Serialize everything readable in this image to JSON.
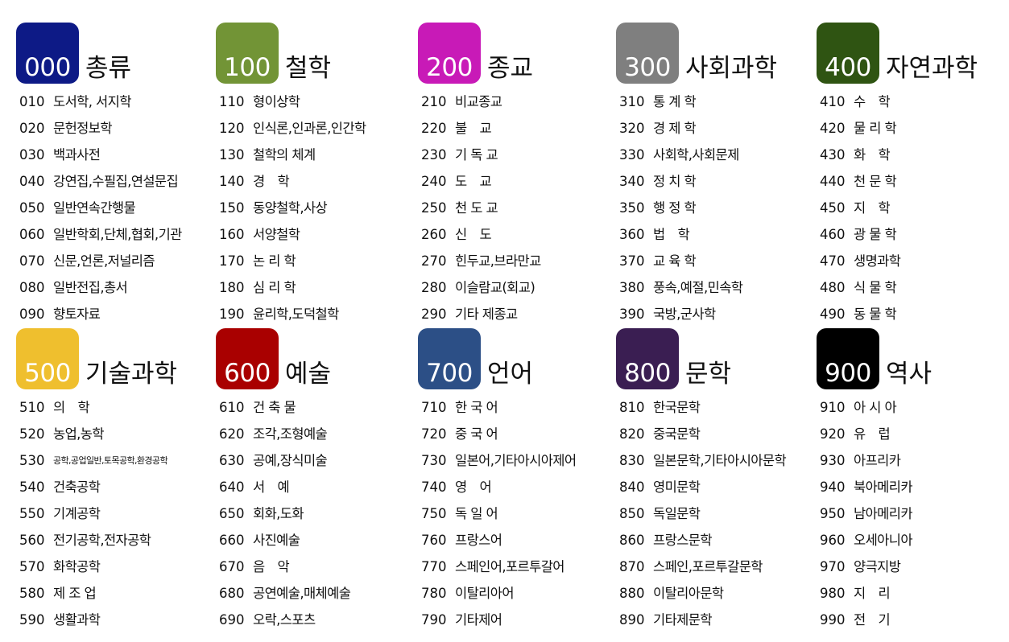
{
  "classes": [
    {
      "code": "000",
      "title": "총류",
      "color": "#0d1a86",
      "items": [
        {
          "num": "010",
          "name": "도서학, 서지학"
        },
        {
          "num": "020",
          "name": "문헌정보학"
        },
        {
          "num": "030",
          "name": "백과사전"
        },
        {
          "num": "040",
          "name": "강연집,수필집,연설문집"
        },
        {
          "num": "050",
          "name": "일반연속간행물"
        },
        {
          "num": "060",
          "name": "일반학회,단체,협회,기관"
        },
        {
          "num": "070",
          "name": "신문,언론,저널리즘"
        },
        {
          "num": "080",
          "name": "일반전집,총서"
        },
        {
          "num": "090",
          "name": "향토자료"
        }
      ]
    },
    {
      "code": "100",
      "title": "철학",
      "color": "#729436",
      "items": [
        {
          "num": "110",
          "name": "형이상학"
        },
        {
          "num": "120",
          "name": "인식론,인과론,인간학"
        },
        {
          "num": "130",
          "name": "철학의 체계"
        },
        {
          "num": "140",
          "name": "경　학"
        },
        {
          "num": "150",
          "name": "동양철학,사상"
        },
        {
          "num": "160",
          "name": "서양철학"
        },
        {
          "num": "170",
          "name": "논 리 학"
        },
        {
          "num": "180",
          "name": "심 리 학"
        },
        {
          "num": "190",
          "name": "윤리학,도덕철학"
        }
      ]
    },
    {
      "code": "200",
      "title": "종교",
      "color": "#c81ab7",
      "items": [
        {
          "num": "210",
          "name": "비교종교"
        },
        {
          "num": "220",
          "name": "불　교"
        },
        {
          "num": "230",
          "name": "기 독 교"
        },
        {
          "num": "240",
          "name": "도　교"
        },
        {
          "num": "250",
          "name": "천 도 교"
        },
        {
          "num": "260",
          "name": "신　도"
        },
        {
          "num": "270",
          "name": "힌두교,브라만교"
        },
        {
          "num": "280",
          "name": "이슬람교(회교)"
        },
        {
          "num": "290",
          "name": "기타 제종교"
        }
      ]
    },
    {
      "code": "300",
      "title": "사회과학",
      "color": "#7f7f7f",
      "items": [
        {
          "num": "310",
          "name": "통 계 학"
        },
        {
          "num": "320",
          "name": "경 제 학"
        },
        {
          "num": "330",
          "name": "사회학,사회문제"
        },
        {
          "num": "340",
          "name": "정 치 학"
        },
        {
          "num": "350",
          "name": "행 정 학"
        },
        {
          "num": "360",
          "name": "법　학"
        },
        {
          "num": "370",
          "name": "교 육 학"
        },
        {
          "num": "380",
          "name": "풍속,예절,민속학"
        },
        {
          "num": "390",
          "name": "국방,군사학"
        }
      ]
    },
    {
      "code": "400",
      "title": "자연과학",
      "color": "#2f5412",
      "items": [
        {
          "num": "410",
          "name": "수　학"
        },
        {
          "num": "420",
          "name": "물 리 학"
        },
        {
          "num": "430",
          "name": "화　학"
        },
        {
          "num": "440",
          "name": "천 문 학"
        },
        {
          "num": "450",
          "name": "지　학"
        },
        {
          "num": "460",
          "name": "광 물 학"
        },
        {
          "num": "470",
          "name": "생명과학"
        },
        {
          "num": "480",
          "name": "식 물 학"
        },
        {
          "num": "490",
          "name": "동 물 학"
        }
      ]
    },
    {
      "code": "500",
      "title": "기술과학",
      "color": "#efbf2e",
      "items": [
        {
          "num": "510",
          "name": "의　학"
        },
        {
          "num": "520",
          "name": "농업,농학"
        },
        {
          "num": "530",
          "name": "공학,공업일반,토목공학,환경공학"
        },
        {
          "num": "540",
          "name": "건축공학"
        },
        {
          "num": "550",
          "name": "기계공학"
        },
        {
          "num": "560",
          "name": "전기공학,전자공학"
        },
        {
          "num": "570",
          "name": "화학공학"
        },
        {
          "num": "580",
          "name": "제 조 업"
        },
        {
          "num": "590",
          "name": "생활과학"
        }
      ]
    },
    {
      "code": "600",
      "title": "예술",
      "color": "#a90000",
      "items": [
        {
          "num": "610",
          "name": "건 축 물"
        },
        {
          "num": "620",
          "name": "조각,조형예술"
        },
        {
          "num": "630",
          "name": "공예,장식미술"
        },
        {
          "num": "640",
          "name": "서　예"
        },
        {
          "num": "650",
          "name": "회화,도화"
        },
        {
          "num": "660",
          "name": "사진예술"
        },
        {
          "num": "670",
          "name": "음　악"
        },
        {
          "num": "680",
          "name": "공연예술,매체예술"
        },
        {
          "num": "690",
          "name": "오락,스포츠"
        }
      ]
    },
    {
      "code": "700",
      "title": "언어",
      "color": "#2c4f86",
      "items": [
        {
          "num": "710",
          "name": "한 국 어"
        },
        {
          "num": "720",
          "name": "중 국 어"
        },
        {
          "num": "730",
          "name": "일본어,기타아시아제어"
        },
        {
          "num": "740",
          "name": "영　어"
        },
        {
          "num": "750",
          "name": "독 일 어"
        },
        {
          "num": "760",
          "name": "프랑스어"
        },
        {
          "num": "770",
          "name": "스페인어,포르투갈어"
        },
        {
          "num": "780",
          "name": "이탈리아어"
        },
        {
          "num": "790",
          "name": "기타제어"
        }
      ]
    },
    {
      "code": "800",
      "title": "문학",
      "color": "#3a1e52",
      "items": [
        {
          "num": "810",
          "name": "한국문학"
        },
        {
          "num": "820",
          "name": "중국문학"
        },
        {
          "num": "830",
          "name": "일본문학,기타아시아문학"
        },
        {
          "num": "840",
          "name": "영미문학"
        },
        {
          "num": "850",
          "name": "독일문학"
        },
        {
          "num": "860",
          "name": "프랑스문학"
        },
        {
          "num": "870",
          "name": "스페인,포르투갈문학"
        },
        {
          "num": "880",
          "name": "이탈리아문학"
        },
        {
          "num": "890",
          "name": "기타제문학"
        }
      ]
    },
    {
      "code": "900",
      "title": "역사",
      "color": "#000000",
      "items": [
        {
          "num": "910",
          "name": "아 시 아"
        },
        {
          "num": "920",
          "name": "유　럽"
        },
        {
          "num": "930",
          "name": "아프리카"
        },
        {
          "num": "940",
          "name": "북아메리카"
        },
        {
          "num": "950",
          "name": "남아메리카"
        },
        {
          "num": "960",
          "name": "오세아니아"
        },
        {
          "num": "970",
          "name": "양극지방"
        },
        {
          "num": "980",
          "name": "지　리"
        },
        {
          "num": "990",
          "name": "전　기"
        }
      ]
    }
  ]
}
